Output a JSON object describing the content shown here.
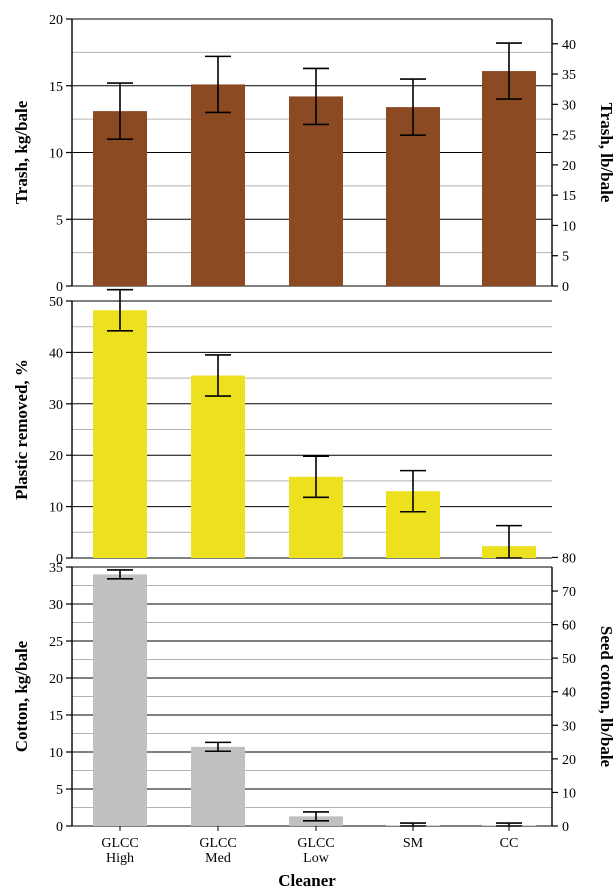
{
  "chart_data": [
    {
      "type": "bar",
      "ylabel": "Trash, kg/bale",
      "y2label": "Trash, lb/bale",
      "ylim": [
        0,
        20
      ],
      "yticks": [
        0,
        5,
        10,
        15,
        20
      ],
      "y2lim": [
        0,
        44.09
      ],
      "y2ticks": [
        0,
        5,
        10,
        15,
        20,
        25,
        30,
        35,
        40
      ],
      "categories": [
        "GLCC High",
        "GLCC Med",
        "GLCC Low",
        "SM",
        "CC"
      ],
      "values": [
        13.1,
        15.1,
        14.2,
        13.4,
        16.1
      ],
      "errors": [
        2.1,
        2.1,
        2.1,
        2.1,
        2.1
      ],
      "bar_color": "#8B4A22",
      "grid": true
    },
    {
      "type": "bar",
      "ylabel": "Plastic removed, %",
      "ylim": [
        0,
        50
      ],
      "yticks": [
        0,
        10,
        20,
        30,
        40,
        50
      ],
      "categories": [
        "GLCC High",
        "GLCC Med",
        "GLCC Low",
        "SM",
        "CC"
      ],
      "values": [
        48.2,
        35.5,
        15.8,
        13.0,
        2.3
      ],
      "errors": [
        4.0,
        4.0,
        4.0,
        4.0,
        4.0
      ],
      "bar_color": "#EDE11F",
      "grid": true
    },
    {
      "type": "bar",
      "ylabel": "Cotton, kg/bale",
      "y2label": "Seed cotton, lb/bale",
      "ylim": [
        0,
        35
      ],
      "yticks": [
        0,
        5,
        10,
        15,
        20,
        25,
        30,
        35
      ],
      "y2lim": [
        0,
        77.16
      ],
      "y2ticks": [
        0,
        10,
        20,
        30,
        40,
        50,
        60,
        70,
        80
      ],
      "categories": [
        "GLCC High",
        "GLCC Med",
        "GLCC Low",
        "SM",
        "CC"
      ],
      "values": [
        34.0,
        10.7,
        1.3,
        0.1,
        0.1
      ],
      "errors": [
        0.6,
        0.6,
        0.6,
        0.3,
        0.3
      ],
      "bar_color": "#C0C0C0",
      "grid": true
    }
  ],
  "category_labels": [
    [
      "GLCC",
      "High"
    ],
    [
      "GLCC",
      "Med"
    ],
    [
      "GLCC",
      "Low"
    ],
    [
      "SM",
      ""
    ],
    [
      "CC",
      ""
    ]
  ],
  "xlabel": "Cleaner"
}
